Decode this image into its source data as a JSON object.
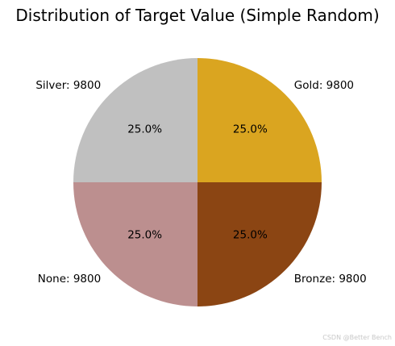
{
  "chart_data": {
    "type": "pie",
    "title": "Distribution of Target Value (Simple Random)",
    "categories": [
      "Gold",
      "Bronze",
      "None",
      "Silver"
    ],
    "values": [
      9800,
      9800,
      9800,
      9800
    ],
    "labels": [
      "Gold: 9800",
      "Bronze: 9800",
      "None: 9800",
      "Silver: 9800"
    ],
    "percent_labels": [
      "25.0%",
      "25.0%",
      "25.0%",
      "25.0%"
    ],
    "colors": [
      "#DAA520",
      "#8B4513",
      "#BC8F8F",
      "#C0C0C0"
    ],
    "start_angle_deg": 90,
    "direction": "clockwise",
    "legend": "none"
  },
  "watermark": "CSDN @Better Bench"
}
